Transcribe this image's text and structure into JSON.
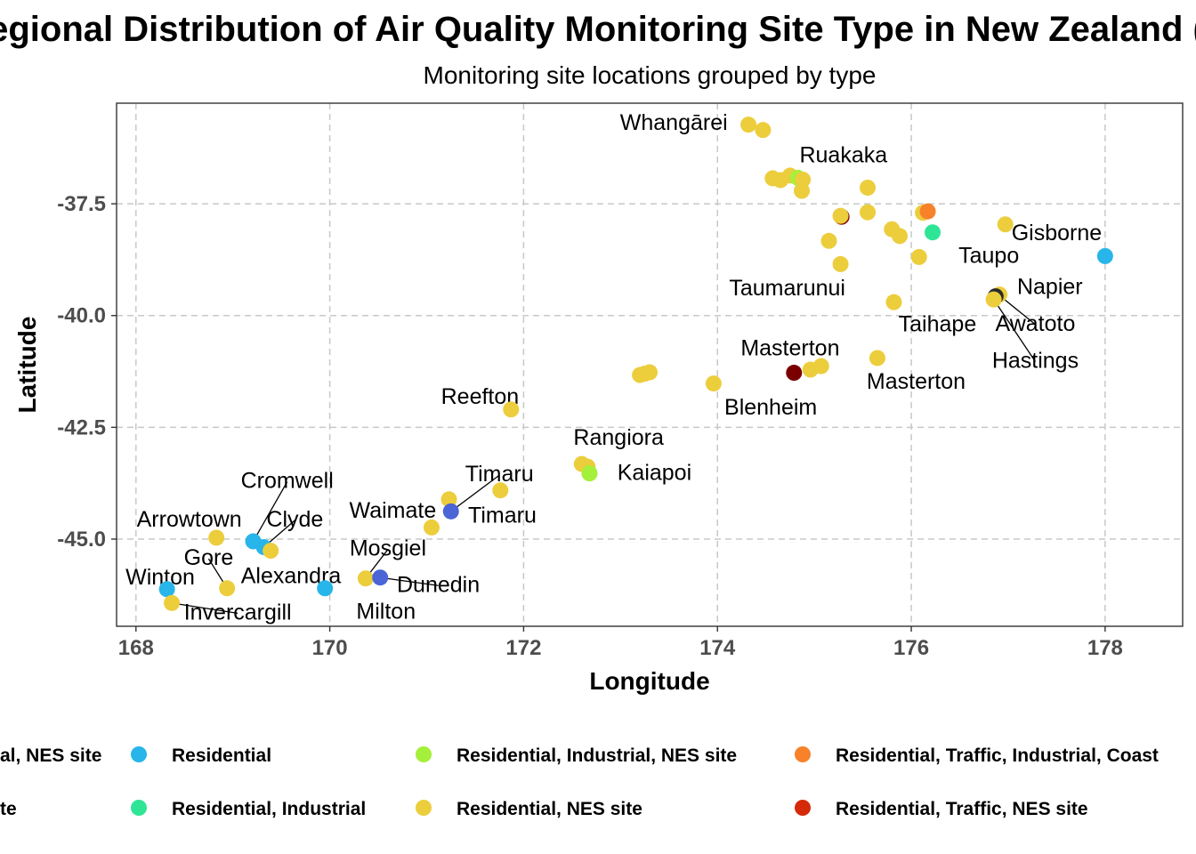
{
  "chart_data": {
    "type": "scatter",
    "title": "Regional Distribution of Air Quality Monitoring Site Type in New Zealand (",
    "subtitle": "Monitoring site locations grouped by type",
    "xlabel": "Longitude",
    "ylabel": "Latitude",
    "xlim": [
      167.8,
      178.8
    ],
    "ylim": [
      -46.95,
      -35.25
    ],
    "xticks": [
      168,
      170,
      172,
      174,
      176,
      178
    ],
    "xtick_labels": [
      "168",
      "170",
      "172",
      "174",
      "176",
      "178"
    ],
    "yticks": [
      -37.5,
      -40.0,
      -42.5,
      -45.0
    ],
    "ytick_labels": [
      "-37.5",
      "-40.0",
      "-42.5",
      "-45.0"
    ],
    "grid": true,
    "grid_style": "dashed",
    "legend_position": "bottom",
    "legend": [
      {
        "label": "Residential, Industrial, NES site",
        "color": "#4b65d6"
      },
      {
        "label": "Residential",
        "color": "#27b5ea"
      },
      {
        "label": "Residential, Industrial, NES site",
        "color": "#a4f03a"
      },
      {
        "label": "Residential, Traffic, Industrial, Coastal",
        "color": "#f7822a"
      },
      {
        "label": "Residential, NES site",
        "color": "#4b65d6"
      },
      {
        "label": "Residential, Industrial",
        "color": "#2ee595"
      },
      {
        "label": "Residential, NES site",
        "color": "#eccd3c"
      },
      {
        "label": "Residential, Traffic, NES site",
        "color": "#d42a08"
      }
    ],
    "legend_visible_text": [
      "al, NES site",
      "Residential",
      "Residential, Industrial, NES site",
      "Residential, Traffic, Industrial, Coast",
      "te",
      "Residential, Industrial",
      "Residential, NES site",
      "Residential, Traffic, NES site"
    ],
    "points": [
      {
        "x": 174.32,
        "y": -35.73,
        "c": "#eccd3c"
      },
      {
        "x": 174.47,
        "y": -35.85,
        "c": "#eccd3c"
      },
      {
        "x": 174.57,
        "y": -36.93,
        "c": "#eccd3c"
      },
      {
        "x": 174.65,
        "y": -36.97,
        "c": "#eccd3c"
      },
      {
        "x": 174.75,
        "y": -36.87,
        "c": "#eccd3c"
      },
      {
        "x": 174.83,
        "y": -36.92,
        "c": "#a4f03a"
      },
      {
        "x": 174.88,
        "y": -36.96,
        "c": "#eccd3c"
      },
      {
        "x": 174.87,
        "y": -37.21,
        "c": "#eccd3c"
      },
      {
        "x": 175.55,
        "y": -37.14,
        "c": "#eccd3c"
      },
      {
        "x": 175.28,
        "y": -37.79,
        "c": "#7a0000"
      },
      {
        "x": 175.27,
        "y": -37.77,
        "c": "#eccd3c"
      },
      {
        "x": 175.55,
        "y": -37.69,
        "c": "#eccd3c"
      },
      {
        "x": 175.15,
        "y": -38.33,
        "c": "#eccd3c"
      },
      {
        "x": 175.27,
        "y": -38.85,
        "c": "#eccd3c"
      },
      {
        "x": 175.8,
        "y": -38.07,
        "c": "#eccd3c"
      },
      {
        "x": 175.88,
        "y": -38.22,
        "c": "#eccd3c"
      },
      {
        "x": 176.12,
        "y": -37.7,
        "c": "#eccd3c"
      },
      {
        "x": 176.17,
        "y": -37.67,
        "c": "#f7822a"
      },
      {
        "x": 176.22,
        "y": -38.14,
        "c": "#2ee595"
      },
      {
        "x": 176.08,
        "y": -38.69,
        "c": "#eccd3c"
      },
      {
        "x": 176.97,
        "y": -37.96,
        "c": "#eccd3c"
      },
      {
        "x": 178.0,
        "y": -38.67,
        "c": "#27b5ea"
      },
      {
        "x": 176.91,
        "y": -39.53,
        "c": "#eccd3c"
      },
      {
        "x": 176.87,
        "y": -39.57,
        "c": "#2a2a2a"
      },
      {
        "x": 176.85,
        "y": -39.64,
        "c": "#eccd3c"
      },
      {
        "x": 175.82,
        "y": -39.7,
        "c": "#eccd3c"
      },
      {
        "x": 175.65,
        "y": -40.95,
        "c": "#eccd3c"
      },
      {
        "x": 174.79,
        "y": -41.28,
        "c": "#7a0000"
      },
      {
        "x": 174.96,
        "y": -41.21,
        "c": "#eccd3c"
      },
      {
        "x": 175.07,
        "y": -41.13,
        "c": "#eccd3c"
      },
      {
        "x": 173.2,
        "y": -41.33,
        "c": "#eccd3c"
      },
      {
        "x": 173.25,
        "y": -41.3,
        "c": "#eccd3c"
      },
      {
        "x": 173.3,
        "y": -41.27,
        "c": "#eccd3c"
      },
      {
        "x": 173.96,
        "y": -41.52,
        "c": "#eccd3c"
      },
      {
        "x": 171.87,
        "y": -42.1,
        "c": "#eccd3c"
      },
      {
        "x": 172.6,
        "y": -43.32,
        "c": "#eccd3c"
      },
      {
        "x": 172.66,
        "y": -43.38,
        "c": "#eccd3c"
      },
      {
        "x": 172.68,
        "y": -43.53,
        "c": "#a4f03a"
      },
      {
        "x": 171.76,
        "y": -43.91,
        "c": "#eccd3c"
      },
      {
        "x": 171.23,
        "y": -44.11,
        "c": "#eccd3c"
      },
      {
        "x": 171.25,
        "y": -44.38,
        "c": "#4b65d6"
      },
      {
        "x": 171.05,
        "y": -44.74,
        "c": "#eccd3c"
      },
      {
        "x": 170.37,
        "y": -45.88,
        "c": "#eccd3c"
      },
      {
        "x": 170.52,
        "y": -45.86,
        "c": "#4b65d6"
      },
      {
        "x": 169.95,
        "y": -46.1,
        "c": "#27b5ea"
      },
      {
        "x": 168.83,
        "y": -44.97,
        "c": "#eccd3c"
      },
      {
        "x": 169.21,
        "y": -45.05,
        "c": "#27b5ea"
      },
      {
        "x": 169.32,
        "y": -45.18,
        "c": "#27b5ea"
      },
      {
        "x": 169.39,
        "y": -45.26,
        "c": "#eccd3c"
      },
      {
        "x": 168.94,
        "y": -46.1,
        "c": "#eccd3c"
      },
      {
        "x": 168.32,
        "y": -46.12,
        "c": "#27b5ea"
      },
      {
        "x": 168.37,
        "y": -46.43,
        "c": "#eccd3c"
      }
    ],
    "labels": [
      {
        "text": "Whangārei",
        "lx": 173.55,
        "ly": -35.67,
        "anchor": "middle"
      },
      {
        "text": "Ruakaka",
        "lx": 175.3,
        "ly": -36.39,
        "anchor": "middle"
      },
      {
        "text": "Gisborne",
        "lx": 177.5,
        "ly": -38.14,
        "anchor": "middle"
      },
      {
        "text": "Taupo",
        "lx": 176.8,
        "ly": -38.64,
        "anchor": "middle"
      },
      {
        "text": "Napier",
        "lx": 177.43,
        "ly": -39.34,
        "anchor": "middle"
      },
      {
        "text": "Taumarunui",
        "lx": 174.72,
        "ly": -39.37,
        "anchor": "middle"
      },
      {
        "text": "Awatoto",
        "lx": 177.28,
        "ly": -40.16,
        "anchor": "middle",
        "px": 176.91,
        "py": -39.55
      },
      {
        "text": "Taihape",
        "lx": 176.27,
        "ly": -40.17,
        "anchor": "middle"
      },
      {
        "text": "Hastings",
        "lx": 177.28,
        "ly": -40.99,
        "anchor": "middle",
        "px": 176.85,
        "py": -39.64
      },
      {
        "text": "Masterton",
        "lx": 174.75,
        "ly": -40.71,
        "anchor": "middle"
      },
      {
        "text": "Masterton",
        "lx": 176.05,
        "ly": -41.46,
        "anchor": "middle"
      },
      {
        "text": "Blenheim",
        "lx": 174.55,
        "ly": -42.04,
        "anchor": "middle"
      },
      {
        "text": "Reefton",
        "lx": 171.55,
        "ly": -41.8,
        "anchor": "middle"
      },
      {
        "text": "Rangiora",
        "lx": 172.98,
        "ly": -42.71,
        "anchor": "middle"
      },
      {
        "text": "Kaiapoi",
        "lx": 173.35,
        "ly": -43.5,
        "anchor": "middle"
      },
      {
        "text": "Timaru",
        "lx": 171.75,
        "ly": -43.53,
        "anchor": "middle",
        "px": 171.25,
        "py": -44.38
      },
      {
        "text": "Timaru",
        "lx": 171.78,
        "ly": -44.45,
        "anchor": "middle"
      },
      {
        "text": "Waimate",
        "lx": 170.65,
        "ly": -44.34,
        "anchor": "middle"
      },
      {
        "text": "Cromwell",
        "lx": 169.56,
        "ly": -43.68,
        "anchor": "middle",
        "px": 169.21,
        "py": -45.05
      },
      {
        "text": "Clyde",
        "lx": 169.64,
        "ly": -44.54,
        "anchor": "middle",
        "px": 169.32,
        "py": -45.18
      },
      {
        "text": "Arrowtown",
        "lx": 168.55,
        "ly": -44.54,
        "anchor": "middle"
      },
      {
        "text": "Gore",
        "lx": 168.75,
        "ly": -45.4,
        "anchor": "middle",
        "px": 168.94,
        "py": -46.1
      },
      {
        "text": "Mosgiel",
        "lx": 170.6,
        "ly": -45.19,
        "anchor": "middle",
        "px": 170.37,
        "py": -45.88
      },
      {
        "text": "Alexandra",
        "lx": 169.6,
        "ly": -45.81,
        "anchor": "middle"
      },
      {
        "text": "Winton",
        "lx": 168.25,
        "ly": -45.84,
        "anchor": "middle"
      },
      {
        "text": "Dunedin",
        "lx": 171.12,
        "ly": -46.0,
        "anchor": "middle",
        "px": 170.52,
        "py": -45.86
      },
      {
        "text": "Milton",
        "lx": 170.58,
        "ly": -46.6,
        "anchor": "middle"
      },
      {
        "text": "Invercargill",
        "lx": 169.05,
        "ly": -46.62,
        "anchor": "middle",
        "px": 168.37,
        "py": -46.43
      }
    ]
  }
}
